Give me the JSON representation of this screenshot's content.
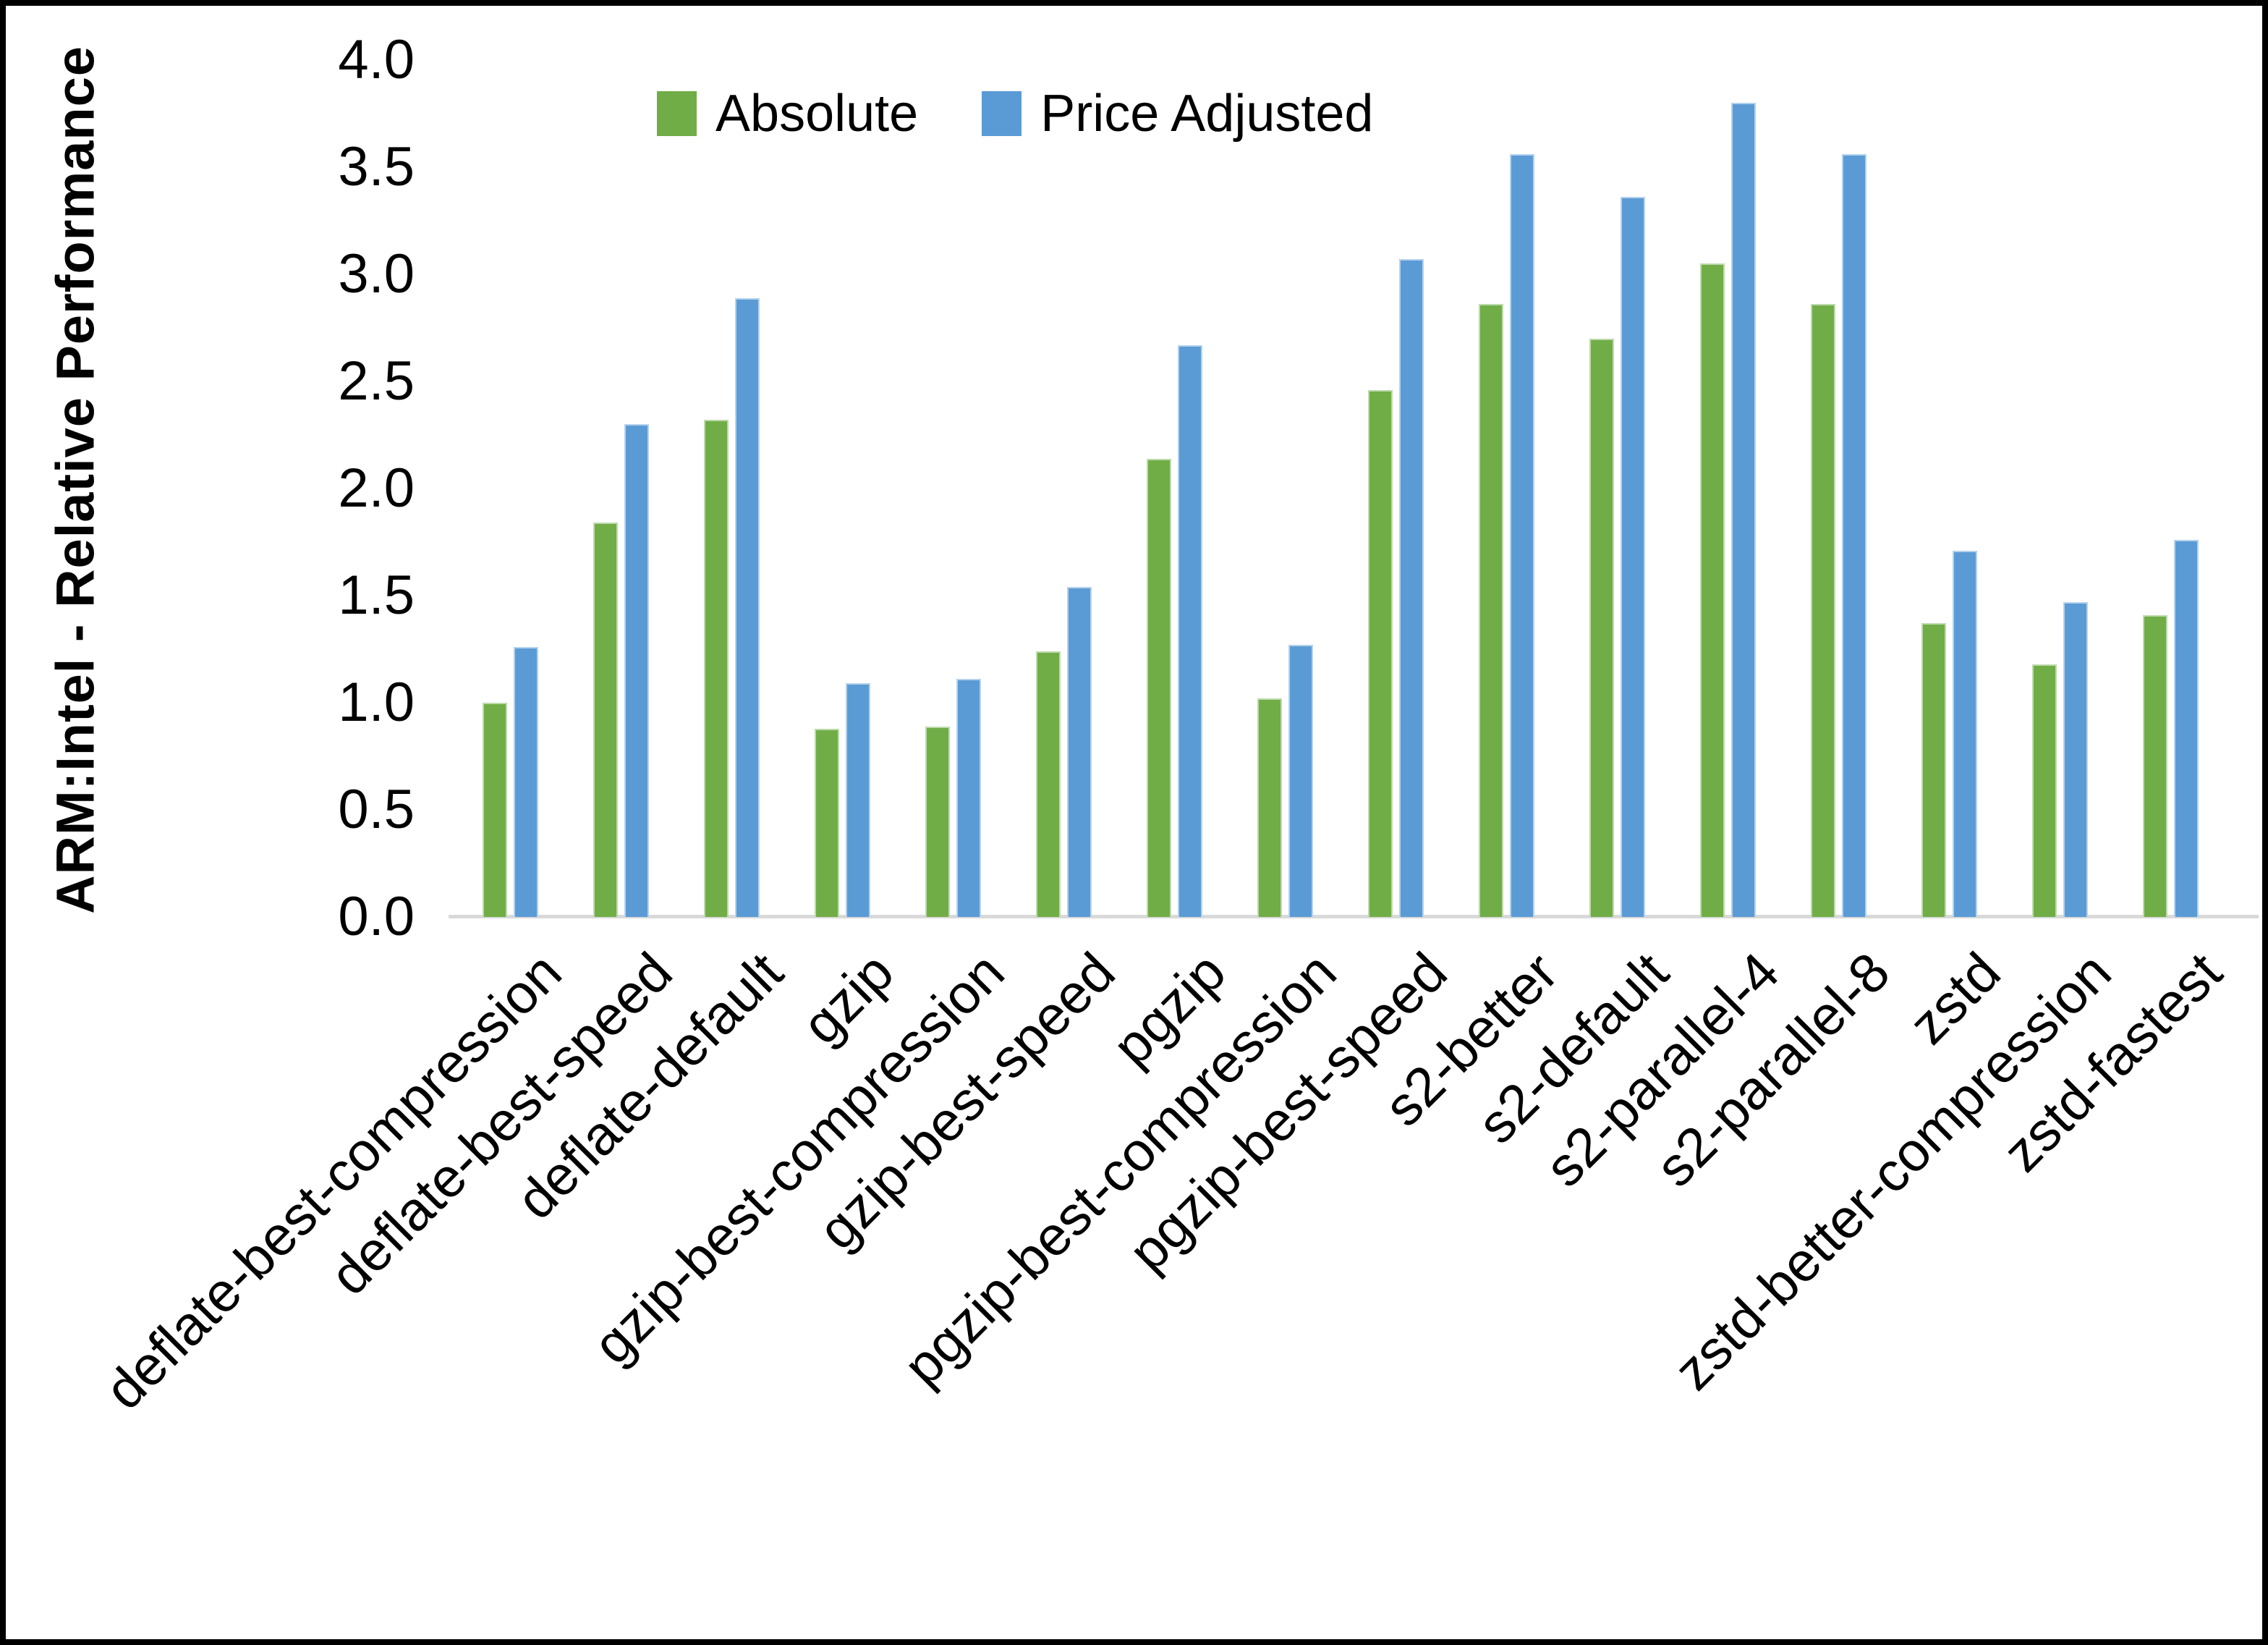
{
  "chart_data": {
    "type": "bar",
    "title": "",
    "xlabel": "",
    "ylabel": "ARM:Intel - Relative Performance",
    "ylim": [
      0.0,
      4.0
    ],
    "ytick_step": 0.5,
    "yticks": [
      "0.0",
      "0.5",
      "1.0",
      "1.5",
      "2.0",
      "2.5",
      "3.0",
      "3.5",
      "4.0"
    ],
    "grid": false,
    "legend_position": "top-center",
    "x_label_rotation_deg": 45,
    "categories": [
      "deflate-best-compression",
      "deflate-best-speed",
      "deflate-default",
      "gzip",
      "gzip-best-compression",
      "gzip-best-speed",
      "pgzip",
      "pgzip-best-compression",
      "pgzip-best-speed",
      "s2-better",
      "s2-default",
      "s2-parallel-4",
      "s2-parallel-8",
      "zstd",
      "zstd-better-compression",
      "zstd-fastest"
    ],
    "series": [
      {
        "name": "Absolute",
        "color": "#70AD47",
        "values": [
          1.0,
          1.84,
          2.32,
          0.88,
          0.89,
          1.24,
          2.14,
          1.02,
          2.46,
          2.86,
          2.7,
          3.05,
          2.86,
          1.37,
          1.18,
          1.41
        ]
      },
      {
        "name": "Price Adjusted",
        "color": "#5B9BD5",
        "values": [
          1.26,
          2.3,
          2.89,
          1.09,
          1.11,
          1.54,
          2.67,
          1.27,
          3.07,
          3.56,
          3.36,
          3.8,
          3.56,
          1.71,
          1.47,
          1.76
        ]
      }
    ]
  },
  "colors": {
    "background": "#FFFFFF",
    "frame_border": "#000000",
    "axis_line": "#D9D9D9",
    "text": "#000000"
  }
}
